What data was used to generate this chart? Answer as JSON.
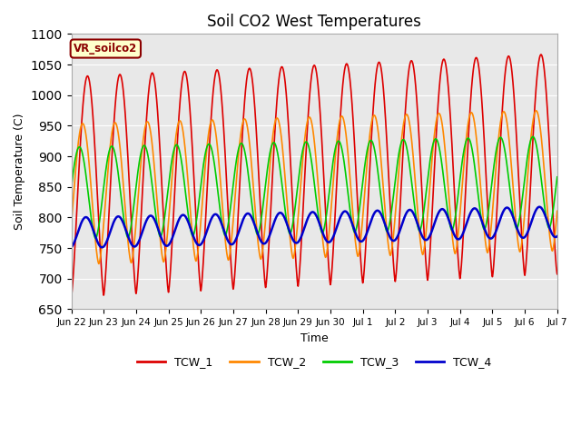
{
  "title": "Soil CO2 West Temperatures",
  "xlabel": "Time",
  "ylabel": "Soil Temperature (C)",
  "ylim": [
    650,
    1100
  ],
  "yticks": [
    650,
    700,
    750,
    800,
    850,
    900,
    950,
    1000,
    1050,
    1100
  ],
  "annotation_text": "VR_soilco2",
  "annotation_bg": "#ffffcc",
  "annotation_border": "#8B0000",
  "line_colors": {
    "TCW_1": "#dd0000",
    "TCW_2": "#ff8800",
    "TCW_3": "#00cc00",
    "TCW_4": "#0000cc"
  },
  "line_widths": {
    "TCW_1": 1.2,
    "TCW_2": 1.2,
    "TCW_3": 1.2,
    "TCW_4": 1.8
  },
  "background_color": "#e8e8e8",
  "fig_background": "#ffffff",
  "grid_color": "#ffffff",
  "num_points": 2000,
  "start_day": 0,
  "end_day": 15.0,
  "xtick_positions": [
    0,
    1,
    2,
    3,
    4,
    5,
    6,
    7,
    8,
    9,
    10,
    11,
    12,
    13,
    14,
    15
  ],
  "xtick_labels": [
    "Jun 22",
    "Jun 23",
    "Jun 24",
    "Jun 25",
    "Jun 26",
    "Jun 27",
    "Jun 28",
    "Jun 29",
    "Jun 30",
    "Jul 1",
    "Jul 2",
    "Jul 3",
    "Jul 4",
    "Jul 5",
    "Jul 6",
    "Jul 7"
  ],
  "TCW1_base": 850,
  "TCW1_amp": 180,
  "TCW1_phase_shift": 0.5,
  "TCW1_trend": 2.5,
  "TCW1_power": 0.7,
  "TCW2_base": 838,
  "TCW2_amp": 115,
  "TCW2_phase_shift": 0.65,
  "TCW2_trend": 1.5,
  "TCW2_power": 0.8,
  "TCW3_base": 840,
  "TCW3_amp": 75,
  "TCW3_phase_shift": 0.75,
  "TCW3_trend": 1.2,
  "TCW3_power": 0.85,
  "TCW4_base": 775,
  "TCW4_amp": 25,
  "TCW4_phase_shift": 0.55,
  "TCW4_trend": 1.2,
  "TCW4_power": 1.0
}
